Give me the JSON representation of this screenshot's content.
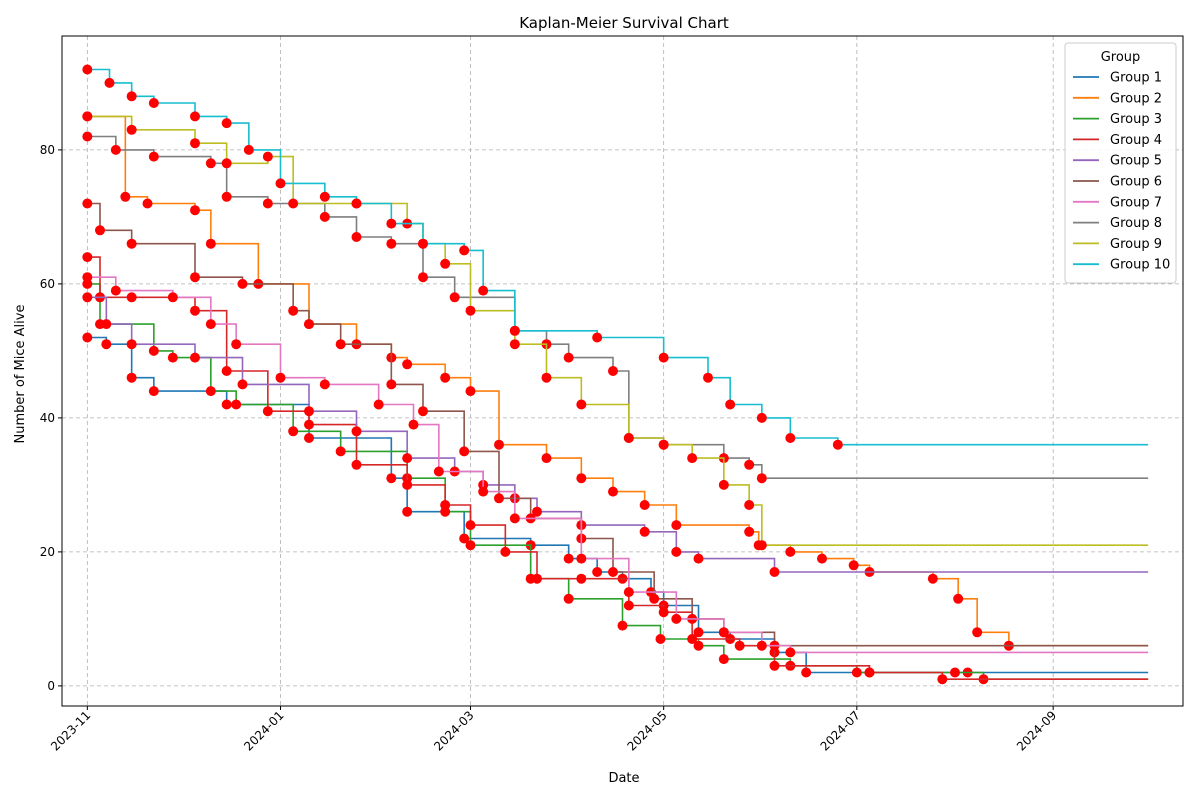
{
  "chart_data": {
    "type": "line",
    "title": "Kaplan-Meier Survival Chart",
    "xlabel": "Date",
    "ylabel": "Number of Mice Alive",
    "xlim": [
      "2023-10-24",
      "2024-10-12"
    ],
    "ylim": [
      -3,
      97
    ],
    "x_ticks": [
      "2023-11",
      "2024-01",
      "2024-03",
      "2024-05",
      "2024-07",
      "2024-09"
    ],
    "y_ticks": [
      0,
      20,
      40,
      60,
      80
    ],
    "grid": true,
    "legend_title": "Group",
    "legend_position": "top-right",
    "marker_color": "#ff0000",
    "series": [
      {
        "name": "Group 1",
        "color": "#1f77b4",
        "points": [
          [
            "2023-11-01",
            52
          ],
          [
            "2023-11-07",
            51
          ],
          [
            "2023-11-15",
            46
          ],
          [
            "2023-11-22",
            44
          ],
          [
            "2023-12-15",
            42
          ],
          [
            "2024-01-10",
            37
          ],
          [
            "2024-02-05",
            31
          ],
          [
            "2024-02-10",
            26
          ],
          [
            "2024-02-28",
            22
          ],
          [
            "2024-03-20",
            21
          ],
          [
            "2024-04-01",
            19
          ],
          [
            "2024-04-10",
            17
          ],
          [
            "2024-04-18",
            16
          ],
          [
            "2024-04-27",
            14
          ],
          [
            "2024-05-01",
            12
          ],
          [
            "2024-05-12",
            8
          ],
          [
            "2024-05-22",
            7
          ],
          [
            "2024-06-05",
            5
          ],
          [
            "2024-06-15",
            2
          ],
          [
            "2024-07-05",
            2
          ],
          [
            "2024-08-05",
            2
          ],
          [
            "2024-10-01",
            2
          ]
        ]
      },
      {
        "name": "Group 2",
        "color": "#ff7f0e",
        "points": [
          [
            "2023-11-01",
            85
          ],
          [
            "2023-11-13",
            73
          ],
          [
            "2023-11-20",
            72
          ],
          [
            "2023-12-05",
            71
          ],
          [
            "2023-12-10",
            66
          ],
          [
            "2023-12-25",
            60
          ],
          [
            "2024-01-10",
            54
          ],
          [
            "2024-01-25",
            51
          ],
          [
            "2024-02-05",
            49
          ],
          [
            "2024-02-10",
            48
          ],
          [
            "2024-02-22",
            46
          ],
          [
            "2024-03-01",
            44
          ],
          [
            "2024-03-10",
            36
          ],
          [
            "2024-03-25",
            34
          ],
          [
            "2024-04-05",
            31
          ],
          [
            "2024-04-15",
            29
          ],
          [
            "2024-04-25",
            27
          ],
          [
            "2024-05-05",
            24
          ],
          [
            "2024-05-28",
            23
          ],
          [
            "2024-05-31",
            21
          ],
          [
            "2024-06-10",
            20
          ],
          [
            "2024-06-20",
            19
          ],
          [
            "2024-06-30",
            18
          ],
          [
            "2024-07-05",
            17
          ],
          [
            "2024-07-25",
            16
          ],
          [
            "2024-08-02",
            13
          ],
          [
            "2024-08-08",
            8
          ],
          [
            "2024-08-18",
            6
          ],
          [
            "2024-10-01",
            6
          ]
        ]
      },
      {
        "name": "Group 3",
        "color": "#2ca02c",
        "points": [
          [
            "2023-11-01",
            60
          ],
          [
            "2023-11-05",
            54
          ],
          [
            "2023-11-22",
            50
          ],
          [
            "2023-11-28",
            49
          ],
          [
            "2023-12-10",
            44
          ],
          [
            "2023-12-18",
            42
          ],
          [
            "2024-01-05",
            38
          ],
          [
            "2024-01-20",
            35
          ],
          [
            "2024-02-10",
            31
          ],
          [
            "2024-02-22",
            26
          ],
          [
            "2024-03-01",
            21
          ],
          [
            "2024-03-20",
            16
          ],
          [
            "2024-04-01",
            13
          ],
          [
            "2024-04-18",
            9
          ],
          [
            "2024-04-30",
            7
          ],
          [
            "2024-05-12",
            6
          ],
          [
            "2024-05-20",
            4
          ],
          [
            "2024-06-10",
            3
          ],
          [
            "2024-07-01",
            2
          ],
          [
            "2024-08-01",
            2
          ],
          [
            "2024-08-10",
            1
          ],
          [
            "2024-10-01",
            1
          ]
        ]
      },
      {
        "name": "Group 4",
        "color": "#d62728",
        "points": [
          [
            "2023-11-01",
            64
          ],
          [
            "2023-11-05",
            58
          ],
          [
            "2023-11-15",
            58
          ],
          [
            "2023-12-05",
            56
          ],
          [
            "2023-12-15",
            47
          ],
          [
            "2023-12-28",
            41
          ],
          [
            "2024-01-10",
            39
          ],
          [
            "2024-01-25",
            33
          ],
          [
            "2024-02-10",
            30
          ],
          [
            "2024-02-22",
            27
          ],
          [
            "2024-03-01",
            24
          ],
          [
            "2024-03-12",
            20
          ],
          [
            "2024-03-22",
            16
          ],
          [
            "2024-04-05",
            16
          ],
          [
            "2024-04-20",
            12
          ],
          [
            "2024-05-01",
            11
          ],
          [
            "2024-05-10",
            7
          ],
          [
            "2024-05-25",
            6
          ],
          [
            "2024-06-05",
            3
          ],
          [
            "2024-07-05",
            2
          ],
          [
            "2024-07-28",
            1
          ],
          [
            "2024-10-01",
            1
          ]
        ]
      },
      {
        "name": "Group 5",
        "color": "#9467bd",
        "points": [
          [
            "2023-11-01",
            58
          ],
          [
            "2023-11-07",
            54
          ],
          [
            "2023-11-15",
            51
          ],
          [
            "2023-12-05",
            49
          ],
          [
            "2023-12-20",
            45
          ],
          [
            "2024-01-10",
            41
          ],
          [
            "2024-01-25",
            38
          ],
          [
            "2024-02-10",
            34
          ],
          [
            "2024-02-25",
            32
          ],
          [
            "2024-03-05",
            30
          ],
          [
            "2024-03-15",
            28
          ],
          [
            "2024-03-22",
            26
          ],
          [
            "2024-04-05",
            24
          ],
          [
            "2024-04-25",
            23
          ],
          [
            "2024-05-05",
            20
          ],
          [
            "2024-05-12",
            19
          ],
          [
            "2024-06-05",
            17
          ],
          [
            "2024-10-01",
            17
          ]
        ]
      },
      {
        "name": "Group 6",
        "color": "#8c564b",
        "points": [
          [
            "2023-11-01",
            72
          ],
          [
            "2023-11-05",
            68
          ],
          [
            "2023-11-15",
            66
          ],
          [
            "2023-12-05",
            61
          ],
          [
            "2023-12-20",
            60
          ],
          [
            "2024-01-05",
            56
          ],
          [
            "2024-01-10",
            54
          ],
          [
            "2024-01-20",
            51
          ],
          [
            "2024-02-05",
            45
          ],
          [
            "2024-02-15",
            41
          ],
          [
            "2024-02-28",
            35
          ],
          [
            "2024-03-10",
            28
          ],
          [
            "2024-03-20",
            25
          ],
          [
            "2024-04-05",
            22
          ],
          [
            "2024-04-15",
            17
          ],
          [
            "2024-04-28",
            13
          ],
          [
            "2024-05-10",
            10
          ],
          [
            "2024-05-20",
            8
          ],
          [
            "2024-06-05",
            6
          ],
          [
            "2024-10-01",
            6
          ]
        ]
      },
      {
        "name": "Group 7",
        "color": "#e377c2",
        "points": [
          [
            "2023-11-01",
            61
          ],
          [
            "2023-11-10",
            59
          ],
          [
            "2023-11-28",
            58
          ],
          [
            "2023-12-10",
            54
          ],
          [
            "2023-12-18",
            51
          ],
          [
            "2024-01-01",
            46
          ],
          [
            "2024-01-15",
            45
          ],
          [
            "2024-02-01",
            42
          ],
          [
            "2024-02-12",
            39
          ],
          [
            "2024-02-20",
            32
          ],
          [
            "2024-03-05",
            29
          ],
          [
            "2024-03-15",
            25
          ],
          [
            "2024-04-05",
            19
          ],
          [
            "2024-04-20",
            14
          ],
          [
            "2024-05-05",
            10
          ],
          [
            "2024-05-20",
            8
          ],
          [
            "2024-06-01",
            6
          ],
          [
            "2024-06-10",
            5
          ],
          [
            "2024-10-01",
            5
          ]
        ]
      },
      {
        "name": "Group 8",
        "color": "#7f7f7f",
        "points": [
          [
            "2023-11-01",
            82
          ],
          [
            "2023-11-10",
            80
          ],
          [
            "2023-11-22",
            79
          ],
          [
            "2023-12-10",
            78
          ],
          [
            "2023-12-15",
            73
          ],
          [
            "2023-12-28",
            72
          ],
          [
            "2024-01-15",
            70
          ],
          [
            "2024-01-25",
            67
          ],
          [
            "2024-02-05",
            66
          ],
          [
            "2024-02-15",
            61
          ],
          [
            "2024-02-25",
            58
          ],
          [
            "2024-03-15",
            53
          ],
          [
            "2024-03-25",
            51
          ],
          [
            "2024-04-01",
            49
          ],
          [
            "2024-04-15",
            47
          ],
          [
            "2024-04-20",
            37
          ],
          [
            "2024-05-01",
            36
          ],
          [
            "2024-05-20",
            34
          ],
          [
            "2024-05-28",
            33
          ],
          [
            "2024-06-01",
            31
          ],
          [
            "2024-10-01",
            31
          ]
        ]
      },
      {
        "name": "Group 9",
        "color": "#bcbd22",
        "points": [
          [
            "2023-11-01",
            85
          ],
          [
            "2023-11-15",
            83
          ],
          [
            "2023-12-05",
            81
          ],
          [
            "2023-12-15",
            78
          ],
          [
            "2023-12-28",
            79
          ],
          [
            "2024-01-05",
            72
          ],
          [
            "2024-01-25",
            72
          ],
          [
            "2024-02-10",
            69
          ],
          [
            "2024-02-15",
            66
          ],
          [
            "2024-02-22",
            63
          ],
          [
            "2024-03-01",
            56
          ],
          [
            "2024-03-15",
            51
          ],
          [
            "2024-03-25",
            46
          ],
          [
            "2024-04-05",
            42
          ],
          [
            "2024-04-20",
            37
          ],
          [
            "2024-05-01",
            36
          ],
          [
            "2024-05-10",
            34
          ],
          [
            "2024-05-20",
            30
          ],
          [
            "2024-05-28",
            27
          ],
          [
            "2024-06-01",
            21
          ],
          [
            "2024-10-01",
            21
          ]
        ]
      },
      {
        "name": "Group 10",
        "color": "#17becf",
        "points": [
          [
            "2023-11-01",
            92
          ],
          [
            "2023-11-08",
            90
          ],
          [
            "2023-11-15",
            88
          ],
          [
            "2023-11-22",
            87
          ],
          [
            "2023-12-05",
            85
          ],
          [
            "2023-12-15",
            84
          ],
          [
            "2023-12-22",
            80
          ],
          [
            "2024-01-01",
            75
          ],
          [
            "2024-01-15",
            73
          ],
          [
            "2024-01-25",
            72
          ],
          [
            "2024-02-05",
            69
          ],
          [
            "2024-02-15",
            66
          ],
          [
            "2024-02-28",
            65
          ],
          [
            "2024-03-05",
            59
          ],
          [
            "2024-03-15",
            53
          ],
          [
            "2024-04-10",
            52
          ],
          [
            "2024-05-01",
            49
          ],
          [
            "2024-05-15",
            46
          ],
          [
            "2024-05-22",
            42
          ],
          [
            "2024-06-01",
            40
          ],
          [
            "2024-06-10",
            37
          ],
          [
            "2024-06-25",
            36
          ],
          [
            "2024-10-01",
            36
          ]
        ]
      }
    ]
  }
}
